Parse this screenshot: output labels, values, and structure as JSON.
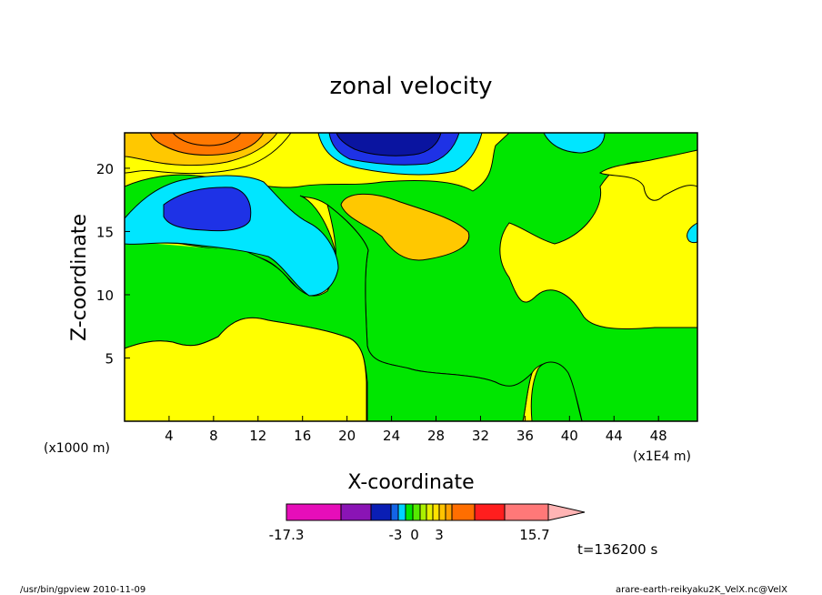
{
  "chart_data": {
    "type": "heatmap",
    "title": "zonal velocity",
    "xlabel": "X-coordinate",
    "ylabel": "Z-coordinate",
    "x_ticks": [
      "4",
      "8",
      "12",
      "16",
      "20",
      "24",
      "28",
      "32",
      "36",
      "40",
      "44",
      "48"
    ],
    "y_ticks": [
      "5",
      "10",
      "15",
      "20"
    ],
    "x_unit_left": "(x1000 m)",
    "x_unit_right": "(x1E4 m)",
    "xlim": [
      0,
      51.5
    ],
    "ylim": [
      0,
      22.8
    ],
    "colorbar": {
      "labels": [
        {
          "text": "-17.3",
          "value": -17.3
        },
        {
          "text": "-3",
          "value": -3
        },
        {
          "text": "0",
          "value": 0
        },
        {
          "text": "3",
          "value": 3
        },
        {
          "text": "15.7",
          "value": 15.7
        }
      ],
      "colors": [
        "#e60eb9",
        "#8a14b5",
        "#0a1eb4",
        "#1464e6",
        "#00d2ff",
        "#00e600",
        "#55ea00",
        "#aaf000",
        "#e6f000",
        "#ffe100",
        "#ffc300",
        "#ffa000",
        "#ff6e00",
        "#ff1e1e",
        "#ff7878",
        "#ffb4b4"
      ]
    },
    "regions": [
      {
        "level": "weak positive",
        "color": "#ffff00"
      },
      {
        "level": "near zero",
        "color": "#00e600"
      },
      {
        "level": "weak negative",
        "color": "#00e6ff"
      },
      {
        "level": "moderate negative",
        "color": "#1e32e6"
      },
      {
        "level": "strong negative",
        "color": "#0a14a0"
      },
      {
        "level": "moderate positive",
        "color": "#ffc800"
      },
      {
        "level": "strong positive",
        "color": "#ff7800"
      }
    ]
  },
  "time_label": "t=136200 s",
  "footer_left": "/usr/bin/gpview   2010-11-09",
  "footer_right": "arare-earth-reikyaku2K_VelX.nc@VelX"
}
